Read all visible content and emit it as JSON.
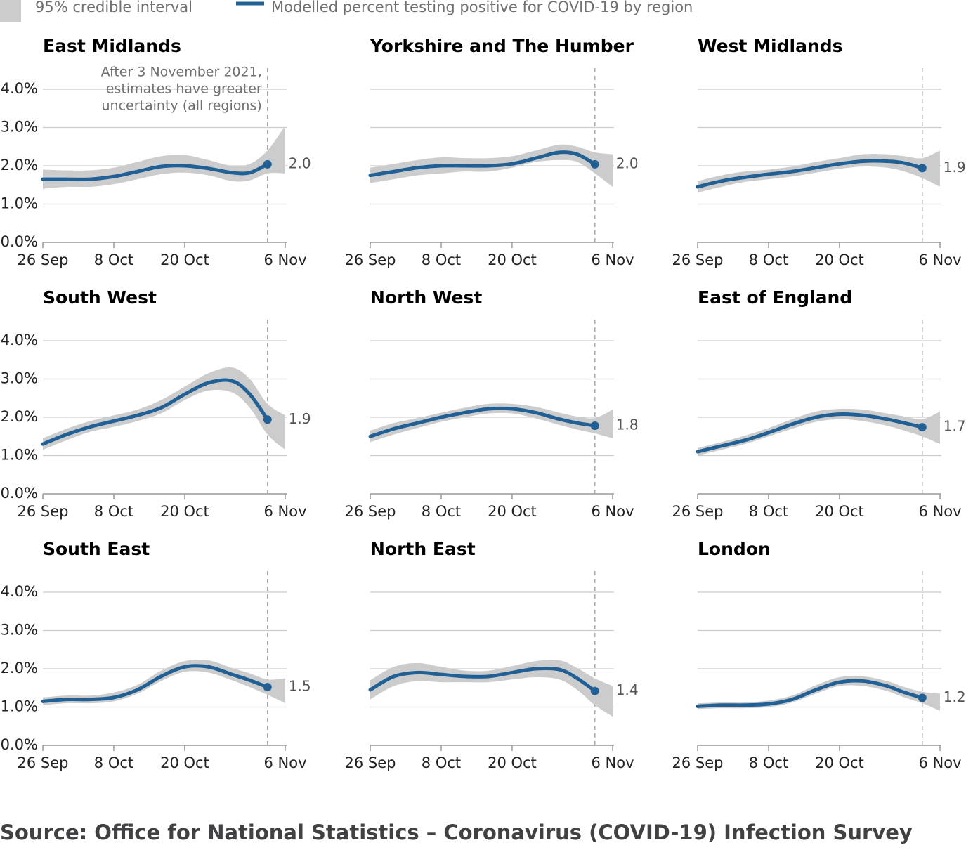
{
  "legend": {
    "items": [
      {
        "name": "95% credible interval",
        "color": "#cccccc"
      },
      {
        "name": "Modelled percent testing positive for COVID-19 by region",
        "color": "#206095"
      }
    ]
  },
  "source": "Source: Office for National Statistics – Coronavirus (COVID-19) Infection Survey",
  "chart_data": [
    {
      "type": "line",
      "title": "East Midlands",
      "ytick_labels": true,
      "annotation": [
        "After 3 November 2021,",
        "estimates have greater",
        "uncertainty (all regions)"
      ],
      "marker_x": "3 Nov",
      "x": [
        "26 Sep",
        "30 Sep",
        "4 Oct",
        "8 Oct",
        "12 Oct",
        "16 Oct",
        "20 Oct",
        "24 Oct",
        "28 Oct",
        "31 Oct",
        "3 Nov",
        "6 Nov"
      ],
      "xlim": [
        "26 Sep",
        "6 Nov"
      ],
      "xticks": [
        "26 Sep",
        "8 Oct",
        "20 Oct",
        "6 Nov"
      ],
      "ylim": [
        0,
        4
      ],
      "yticks": [
        {
          "value": 0,
          "label": "0.0%"
        },
        {
          "value": 1,
          "label": "1.0%"
        },
        {
          "value": 2,
          "label": "2.0%"
        },
        {
          "value": 3,
          "label": "3.0%"
        },
        {
          "value": 4,
          "label": "4.0%"
        }
      ],
      "values": [
        1.65,
        1.65,
        1.65,
        1.72,
        1.85,
        1.98,
        2.0,
        1.93,
        1.82,
        1.82,
        2.04,
        null
      ],
      "value_labels": [
        null,
        null,
        null,
        null,
        null,
        null,
        null,
        null,
        null,
        null,
        "2.0",
        null
      ],
      "lower": [
        1.4,
        1.45,
        1.45,
        1.52,
        1.65,
        1.78,
        1.82,
        1.75,
        1.6,
        1.62,
        1.8,
        1.8
      ],
      "upper": [
        1.9,
        1.88,
        1.88,
        1.95,
        2.1,
        2.25,
        2.28,
        2.15,
        2.0,
        2.05,
        2.4,
        3.05
      ]
    },
    {
      "type": "line",
      "title": "Yorkshire and The Humber",
      "ytick_labels": false,
      "marker_x": "3 Nov",
      "x": [
        "26 Sep",
        "30 Sep",
        "4 Oct",
        "8 Oct",
        "12 Oct",
        "16 Oct",
        "20 Oct",
        "24 Oct",
        "28 Oct",
        "31 Oct",
        "3 Nov",
        "6 Nov"
      ],
      "xlim": [
        "26 Sep",
        "6 Nov"
      ],
      "xticks": [
        "26 Sep",
        "8 Oct",
        "20 Oct",
        "6 Nov"
      ],
      "ylim": [
        0,
        4
      ],
      "yticks": [
        {
          "value": 0,
          "label": "0.0%"
        },
        {
          "value": 1,
          "label": "1.0%"
        },
        {
          "value": 2,
          "label": "2.0%"
        },
        {
          "value": 3,
          "label": "3.0%"
        },
        {
          "value": 4,
          "label": "4.0%"
        }
      ],
      "values": [
        1.75,
        1.85,
        1.95,
        2.0,
        2.0,
        2.0,
        2.05,
        2.2,
        2.35,
        2.3,
        2.04,
        null
      ],
      "value_labels": [
        null,
        null,
        null,
        null,
        null,
        null,
        null,
        null,
        null,
        null,
        "2.0",
        null
      ],
      "lower": [
        1.55,
        1.65,
        1.75,
        1.8,
        1.85,
        1.85,
        1.95,
        2.1,
        2.15,
        2.1,
        1.8,
        1.45
      ],
      "upper": [
        1.95,
        2.05,
        2.15,
        2.22,
        2.2,
        2.2,
        2.25,
        2.4,
        2.55,
        2.5,
        2.35,
        2.3
      ]
    },
    {
      "type": "line",
      "title": "West Midlands",
      "ytick_labels": false,
      "marker_x": "3 Nov",
      "x": [
        "26 Sep",
        "30 Sep",
        "4 Oct",
        "8 Oct",
        "12 Oct",
        "16 Oct",
        "20 Oct",
        "24 Oct",
        "28 Oct",
        "31 Oct",
        "3 Nov",
        "6 Nov"
      ],
      "xlim": [
        "26 Sep",
        "6 Nov"
      ],
      "xticks": [
        "26 Sep",
        "8 Oct",
        "20 Oct",
        "6 Nov"
      ],
      "ylim": [
        0,
        4
      ],
      "yticks": [
        {
          "value": 0,
          "label": "0.0%"
        },
        {
          "value": 1,
          "label": "1.0%"
        },
        {
          "value": 2,
          "label": "2.0%"
        },
        {
          "value": 3,
          "label": "3.0%"
        },
        {
          "value": 4,
          "label": "4.0%"
        }
      ],
      "values": [
        1.45,
        1.6,
        1.7,
        1.78,
        1.85,
        1.95,
        2.05,
        2.12,
        2.12,
        2.07,
        1.94,
        null
      ],
      "value_labels": [
        null,
        null,
        null,
        null,
        null,
        null,
        null,
        null,
        null,
        null,
        "1.9",
        null
      ],
      "lower": [
        1.3,
        1.45,
        1.58,
        1.65,
        1.72,
        1.82,
        1.92,
        1.98,
        1.95,
        1.85,
        1.68,
        1.45
      ],
      "upper": [
        1.6,
        1.75,
        1.85,
        1.9,
        1.98,
        2.1,
        2.2,
        2.3,
        2.3,
        2.25,
        2.2,
        2.4
      ]
    },
    {
      "type": "line",
      "title": "South West",
      "ytick_labels": true,
      "marker_x": "3 Nov",
      "x": [
        "26 Sep",
        "30 Sep",
        "4 Oct",
        "8 Oct",
        "12 Oct",
        "16 Oct",
        "20 Oct",
        "24 Oct",
        "28 Oct",
        "31 Oct",
        "3 Nov",
        "6 Nov"
      ],
      "xlim": [
        "26 Sep",
        "6 Nov"
      ],
      "xticks": [
        "26 Sep",
        "8 Oct",
        "20 Oct",
        "6 Nov"
      ],
      "ylim": [
        0,
        4
      ],
      "yticks": [
        {
          "value": 0,
          "label": "0.0%"
        },
        {
          "value": 1,
          "label": "1.0%"
        },
        {
          "value": 2,
          "label": "2.0%"
        },
        {
          "value": 3,
          "label": "3.0%"
        },
        {
          "value": 4,
          "label": "4.0%"
        }
      ],
      "values": [
        1.3,
        1.55,
        1.75,
        1.9,
        2.05,
        2.25,
        2.6,
        2.9,
        2.95,
        2.6,
        1.94,
        null
      ],
      "value_labels": [
        null,
        null,
        null,
        null,
        null,
        null,
        null,
        null,
        null,
        null,
        "1.9",
        null
      ],
      "lower": [
        1.15,
        1.4,
        1.62,
        1.75,
        1.9,
        2.1,
        2.45,
        2.7,
        2.65,
        2.25,
        1.55,
        1.15
      ],
      "upper": [
        1.45,
        1.7,
        1.9,
        2.05,
        2.2,
        2.45,
        2.8,
        3.15,
        3.3,
        3.0,
        2.35,
        2.05
      ]
    },
    {
      "type": "line",
      "title": "North West",
      "ytick_labels": false,
      "marker_x": "3 Nov",
      "x": [
        "26 Sep",
        "30 Sep",
        "4 Oct",
        "8 Oct",
        "12 Oct",
        "16 Oct",
        "20 Oct",
        "24 Oct",
        "28 Oct",
        "31 Oct",
        "3 Nov",
        "6 Nov"
      ],
      "xlim": [
        "26 Sep",
        "6 Nov"
      ],
      "xticks": [
        "26 Sep",
        "8 Oct",
        "20 Oct",
        "6 Nov"
      ],
      "ylim": [
        0,
        4
      ],
      "yticks": [
        {
          "value": 0,
          "label": "0.0%"
        },
        {
          "value": 1,
          "label": "1.0%"
        },
        {
          "value": 2,
          "label": "2.0%"
        },
        {
          "value": 3,
          "label": "3.0%"
        },
        {
          "value": 4,
          "label": "4.0%"
        }
      ],
      "values": [
        1.5,
        1.7,
        1.85,
        2.0,
        2.12,
        2.22,
        2.22,
        2.12,
        1.95,
        1.85,
        1.78,
        null
      ],
      "value_labels": [
        null,
        null,
        null,
        null,
        null,
        null,
        null,
        null,
        null,
        null,
        "1.8",
        null
      ],
      "lower": [
        1.35,
        1.55,
        1.72,
        1.88,
        2.0,
        2.1,
        2.1,
        1.97,
        1.8,
        1.68,
        1.58,
        1.45
      ],
      "upper": [
        1.65,
        1.85,
        1.98,
        2.12,
        2.25,
        2.35,
        2.35,
        2.27,
        2.12,
        2.02,
        1.98,
        2.2
      ]
    },
    {
      "type": "line",
      "title": "East of England",
      "ytick_labels": false,
      "marker_x": "3 Nov",
      "x": [
        "26 Sep",
        "30 Sep",
        "4 Oct",
        "8 Oct",
        "12 Oct",
        "16 Oct",
        "20 Oct",
        "24 Oct",
        "28 Oct",
        "31 Oct",
        "3 Nov",
        "6 Nov"
      ],
      "xlim": [
        "26 Sep",
        "6 Nov"
      ],
      "xticks": [
        "26 Sep",
        "8 Oct",
        "20 Oct",
        "6 Nov"
      ],
      "ylim": [
        0,
        4
      ],
      "yticks": [
        {
          "value": 0,
          "label": "0.0%"
        },
        {
          "value": 1,
          "label": "1.0%"
        },
        {
          "value": 2,
          "label": "2.0%"
        },
        {
          "value": 3,
          "label": "3.0%"
        },
        {
          "value": 4,
          "label": "4.0%"
        }
      ],
      "values": [
        1.1,
        1.25,
        1.4,
        1.6,
        1.82,
        2.0,
        2.08,
        2.05,
        1.95,
        1.85,
        1.74,
        null
      ],
      "value_labels": [
        null,
        null,
        null,
        null,
        null,
        null,
        null,
        null,
        null,
        null,
        "1.7",
        null
      ],
      "lower": [
        1.0,
        1.15,
        1.3,
        1.5,
        1.7,
        1.88,
        1.95,
        1.9,
        1.78,
        1.65,
        1.5,
        1.3
      ],
      "upper": [
        1.2,
        1.35,
        1.52,
        1.72,
        1.95,
        2.15,
        2.22,
        2.2,
        2.1,
        2.02,
        1.95,
        2.15
      ]
    },
    {
      "type": "line",
      "title": "South East",
      "ytick_labels": true,
      "marker_x": "3 Nov",
      "x": [
        "26 Sep",
        "30 Sep",
        "4 Oct",
        "8 Oct",
        "12 Oct",
        "16 Oct",
        "20 Oct",
        "24 Oct",
        "28 Oct",
        "31 Oct",
        "3 Nov",
        "6 Nov"
      ],
      "xlim": [
        "26 Sep",
        "6 Nov"
      ],
      "xticks": [
        "26 Sep",
        "8 Oct",
        "20 Oct",
        "6 Nov"
      ],
      "ylim": [
        0,
        4
      ],
      "yticks": [
        {
          "value": 0,
          "label": "0.0%"
        },
        {
          "value": 1,
          "label": "1.0%"
        },
        {
          "value": 2,
          "label": "2.0%"
        },
        {
          "value": 3,
          "label": "3.0%"
        },
        {
          "value": 4,
          "label": "4.0%"
        }
      ],
      "values": [
        1.15,
        1.2,
        1.2,
        1.25,
        1.45,
        1.8,
        2.05,
        2.05,
        1.85,
        1.7,
        1.52,
        null
      ],
      "value_labels": [
        null,
        null,
        null,
        null,
        null,
        null,
        null,
        null,
        null,
        null,
        "1.5",
        null
      ],
      "lower": [
        1.05,
        1.1,
        1.1,
        1.15,
        1.35,
        1.68,
        1.92,
        1.9,
        1.7,
        1.52,
        1.32,
        1.1
      ],
      "upper": [
        1.25,
        1.3,
        1.3,
        1.38,
        1.58,
        1.95,
        2.2,
        2.22,
        2.02,
        1.88,
        1.72,
        1.75
      ]
    },
    {
      "type": "line",
      "title": "North East",
      "ytick_labels": false,
      "marker_x": "3 Nov",
      "x": [
        "26 Sep",
        "30 Sep",
        "4 Oct",
        "8 Oct",
        "12 Oct",
        "16 Oct",
        "20 Oct",
        "24 Oct",
        "28 Oct",
        "31 Oct",
        "3 Nov",
        "6 Nov"
      ],
      "xlim": [
        "26 Sep",
        "6 Nov"
      ],
      "xticks": [
        "26 Sep",
        "8 Oct",
        "20 Oct",
        "6 Nov"
      ],
      "ylim": [
        0,
        4
      ],
      "yticks": [
        {
          "value": 0,
          "label": "0.0%"
        },
        {
          "value": 1,
          "label": "1.0%"
        },
        {
          "value": 2,
          "label": "2.0%"
        },
        {
          "value": 3,
          "label": "3.0%"
        },
        {
          "value": 4,
          "label": "4.0%"
        }
      ],
      "values": [
        1.45,
        1.8,
        1.9,
        1.85,
        1.8,
        1.8,
        1.9,
        2.0,
        1.98,
        1.75,
        1.42,
        null
      ],
      "value_labels": [
        null,
        null,
        null,
        null,
        null,
        null,
        null,
        null,
        null,
        null,
        "1.4",
        null
      ],
      "lower": [
        1.2,
        1.55,
        1.68,
        1.65,
        1.65,
        1.65,
        1.72,
        1.78,
        1.72,
        1.45,
        1.05,
        0.75
      ],
      "upper": [
        1.7,
        2.05,
        2.15,
        2.05,
        1.95,
        1.95,
        2.07,
        2.2,
        2.22,
        2.02,
        1.75,
        1.55
      ]
    },
    {
      "type": "line",
      "title": "London",
      "ytick_labels": false,
      "marker_x": "3 Nov",
      "x": [
        "26 Sep",
        "30 Sep",
        "4 Oct",
        "8 Oct",
        "12 Oct",
        "16 Oct",
        "20 Oct",
        "24 Oct",
        "28 Oct",
        "31 Oct",
        "3 Nov",
        "6 Nov"
      ],
      "xlim": [
        "26 Sep",
        "6 Nov"
      ],
      "xticks": [
        "26 Sep",
        "8 Oct",
        "20 Oct",
        "6 Nov"
      ],
      "ylim": [
        0,
        4
      ],
      "yticks": [
        {
          "value": 0,
          "label": "0.0%"
        },
        {
          "value": 1,
          "label": "1.0%"
        },
        {
          "value": 2,
          "label": "2.0%"
        },
        {
          "value": 3,
          "label": "3.0%"
        },
        {
          "value": 4,
          "label": "4.0%"
        }
      ],
      "values": [
        1.02,
        1.05,
        1.05,
        1.08,
        1.2,
        1.45,
        1.65,
        1.68,
        1.55,
        1.38,
        1.24,
        null
      ],
      "value_labels": [
        null,
        null,
        null,
        null,
        null,
        null,
        null,
        null,
        null,
        null,
        "1.2",
        null
      ],
      "lower": [
        0.95,
        0.97,
        0.97,
        1.0,
        1.12,
        1.35,
        1.55,
        1.55,
        1.42,
        1.25,
        1.1,
        0.9
      ],
      "upper": [
        1.1,
        1.12,
        1.12,
        1.17,
        1.3,
        1.57,
        1.78,
        1.8,
        1.68,
        1.52,
        1.4,
        1.35
      ]
    }
  ]
}
